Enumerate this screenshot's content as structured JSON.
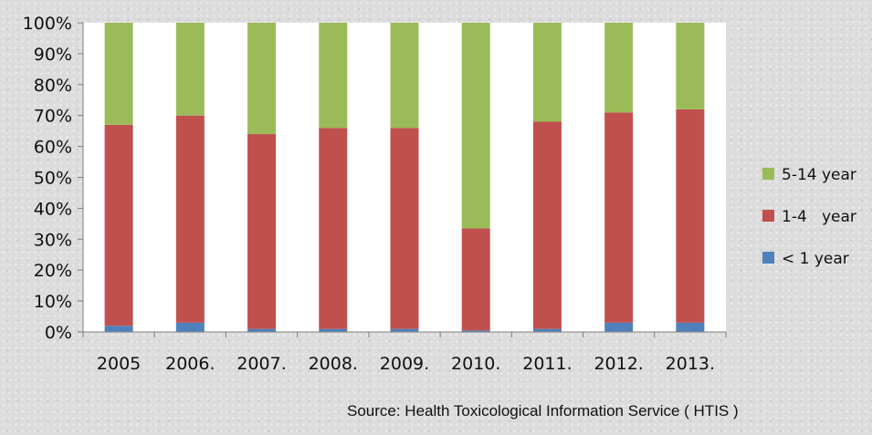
{
  "chart_data": {
    "type": "bar",
    "stacked": true,
    "categories": [
      "2005",
      "2006.",
      "2007.",
      "2008.",
      "2009.",
      "2010.",
      "2011.",
      "2012.",
      "2013."
    ],
    "series": [
      {
        "name": "< 1 year",
        "color": "#4f81bd",
        "values": [
          2,
          3,
          1,
          1,
          1,
          0.5,
          1,
          3,
          3
        ]
      },
      {
        "name": "1-4   year",
        "color": "#c0504d",
        "values": [
          65,
          67,
          63,
          65,
          65,
          33,
          67,
          68,
          69
        ]
      },
      {
        "name": "5-14 year",
        "color": "#9bbb59",
        "values": [
          33,
          30,
          36,
          34,
          34,
          66.5,
          32,
          29,
          28
        ]
      }
    ],
    "ylim": [
      0,
      100
    ],
    "yticks": [
      "0%",
      "10%",
      "20%",
      "30%",
      "40%",
      "50%",
      "60%",
      "70%",
      "80%",
      "90%",
      "100%"
    ],
    "legend_position": "right",
    "grid": false
  },
  "source": "Source: Health Toxicological Information Service ( HTIS )"
}
